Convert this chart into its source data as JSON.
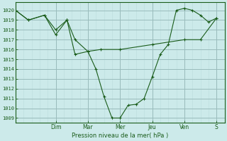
{
  "xlabel": "Pression niveau de la mer( hPa )",
  "bg_color": "#cceaea",
  "grid_color_major": "#99bbbb",
  "grid_color_minor": "#bbdddd",
  "line_color": "#1a5c1a",
  "ylim": [
    1008.5,
    1020.8
  ],
  "xlim": [
    0,
    13.0
  ],
  "yticks": [
    1009,
    1010,
    1011,
    1012,
    1013,
    1014,
    1015,
    1016,
    1017,
    1018,
    1019,
    1020
  ],
  "day_labels": [
    "Dim",
    "Mar",
    "Mer",
    "Jeu",
    "Ven",
    "S"
  ],
  "day_positions": [
    2.5,
    4.5,
    6.5,
    8.5,
    10.5,
    12.5
  ],
  "series1_x": [
    0.0,
    0.8,
    1.8,
    2.5,
    3.2,
    3.7,
    4.5,
    5.3,
    6.5,
    8.5,
    10.5,
    11.5,
    12.5
  ],
  "series1_y": [
    1020.0,
    1019.0,
    1019.5,
    1017.5,
    1019.0,
    1017.0,
    1015.8,
    1016.0,
    1016.0,
    1016.5,
    1017.0,
    1017.0,
    1019.2
  ],
  "series2_x": [
    0.0,
    0.8,
    1.8,
    2.5,
    3.2,
    3.7,
    4.5,
    5.0,
    5.5,
    6.0,
    6.5,
    7.0,
    7.5,
    8.0,
    8.5,
    9.0,
    9.5,
    10.0,
    10.5,
    11.0,
    11.5,
    12.0,
    12.5
  ],
  "series2_y": [
    1020.0,
    1019.0,
    1019.5,
    1018.0,
    1019.0,
    1015.5,
    1015.8,
    1014.0,
    1011.2,
    1009.0,
    1009.0,
    1010.3,
    1010.4,
    1011.0,
    1013.2,
    1015.5,
    1016.5,
    1020.0,
    1020.2,
    1020.0,
    1019.5,
    1018.8,
    1019.2
  ]
}
